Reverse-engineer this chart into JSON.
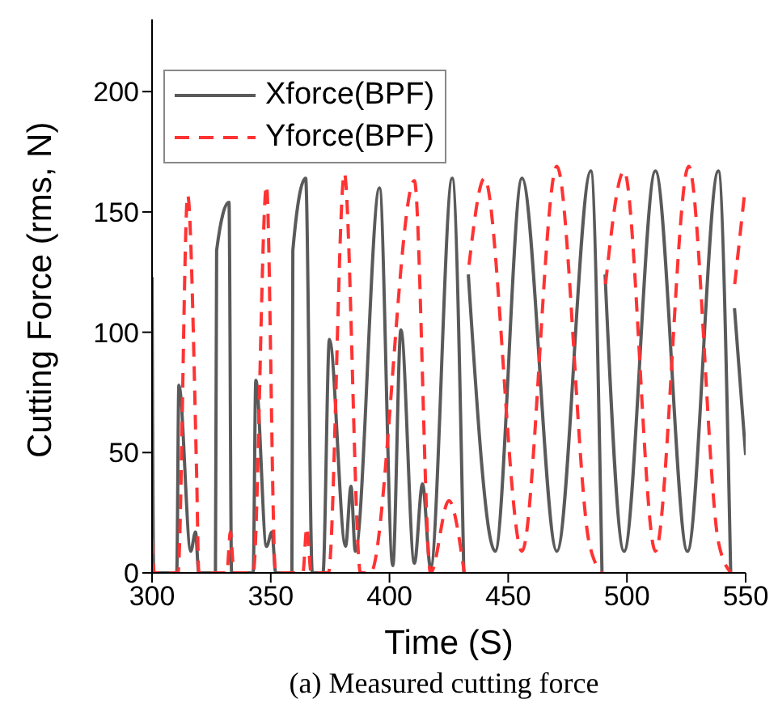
{
  "chart_data": {
    "type": "line",
    "title": "(a) Measured cutting force",
    "xlabel": "Time (S)",
    "ylabel": "Cutting Force (rms, N)",
    "xlim": [
      300,
      550
    ],
    "xticks": [
      300,
      350,
      400,
      450,
      500,
      550
    ],
    "ylim": [
      0,
      230
    ],
    "yticks": [
      0,
      50,
      100,
      150,
      200
    ],
    "legend": "top left",
    "marker": "none",
    "series": [
      {
        "name": "Xforce(BPF)",
        "color": "#5a5a5a",
        "line_style": "solid",
        "x": [
          300,
          300.7,
          310.4,
          311.3,
          316.3,
          318.3,
          319.7,
          326.7,
          327.2,
          332.4,
          333.5,
          342.6,
          343.7,
          348.2,
          350.5,
          352.1,
          358.9,
          359.3,
          364.7,
          367.5,
          372,
          374.7,
          381.5,
          383.8,
          385.6,
          395.8,
          401.4,
          404.8,
          410.5,
          413.9,
          417.3,
          426.4,
          431.3,
          432.7,
          433.2,
          444.5,
          455.8,
          470.5,
          484.8,
          489.5,
          490.2,
          490.8,
          498.8,
          512,
          525.5,
          538.5,
          543.7,
          544.6,
          545.3,
          550
        ],
        "values": [
          123,
          0,
          0,
          78,
          9,
          17,
          0,
          0,
          134,
          154,
          0,
          0,
          80,
          11,
          17,
          0,
          0,
          134,
          164,
          0,
          0,
          97,
          11,
          36,
          9,
          160,
          3,
          101,
          4,
          37,
          2,
          164,
          0,
          null,
          124,
          9,
          164,
          9,
          167,
          0,
          null,
          124,
          9,
          167,
          9,
          167,
          0,
          null,
          110,
          49
        ]
      },
      {
        "name": "Yforce(BPF)",
        "color": "#ff3333",
        "line_style": "dashed",
        "x": [
          300,
          301,
          310.9,
          315,
          318.8,
          319.7,
          331.5,
          333,
          334.5,
          342.6,
          348.2,
          352,
          363.5,
          365.2,
          367,
          374.3,
          381,
          387.8,
          392,
          410.5,
          417.3,
          425,
          431.5,
          432.7,
          433.5,
          440,
          455.8,
          470.5,
          484,
          489.5,
          490.2,
          491,
          498.8,
          512,
          526,
          538.5,
          543.8,
          544.6,
          545.4,
          549.8
        ],
        "values": [
          14,
          0,
          0,
          157,
          40,
          0,
          0,
          17,
          0,
          0,
          161,
          0,
          0,
          19,
          0,
          0,
          166,
          0,
          0,
          163,
          0,
          30,
          0,
          null,
          128,
          164,
          9,
          169,
          13,
          0,
          null,
          120,
          167,
          9,
          169,
          13,
          0,
          null,
          120,
          160
        ]
      }
    ]
  }
}
